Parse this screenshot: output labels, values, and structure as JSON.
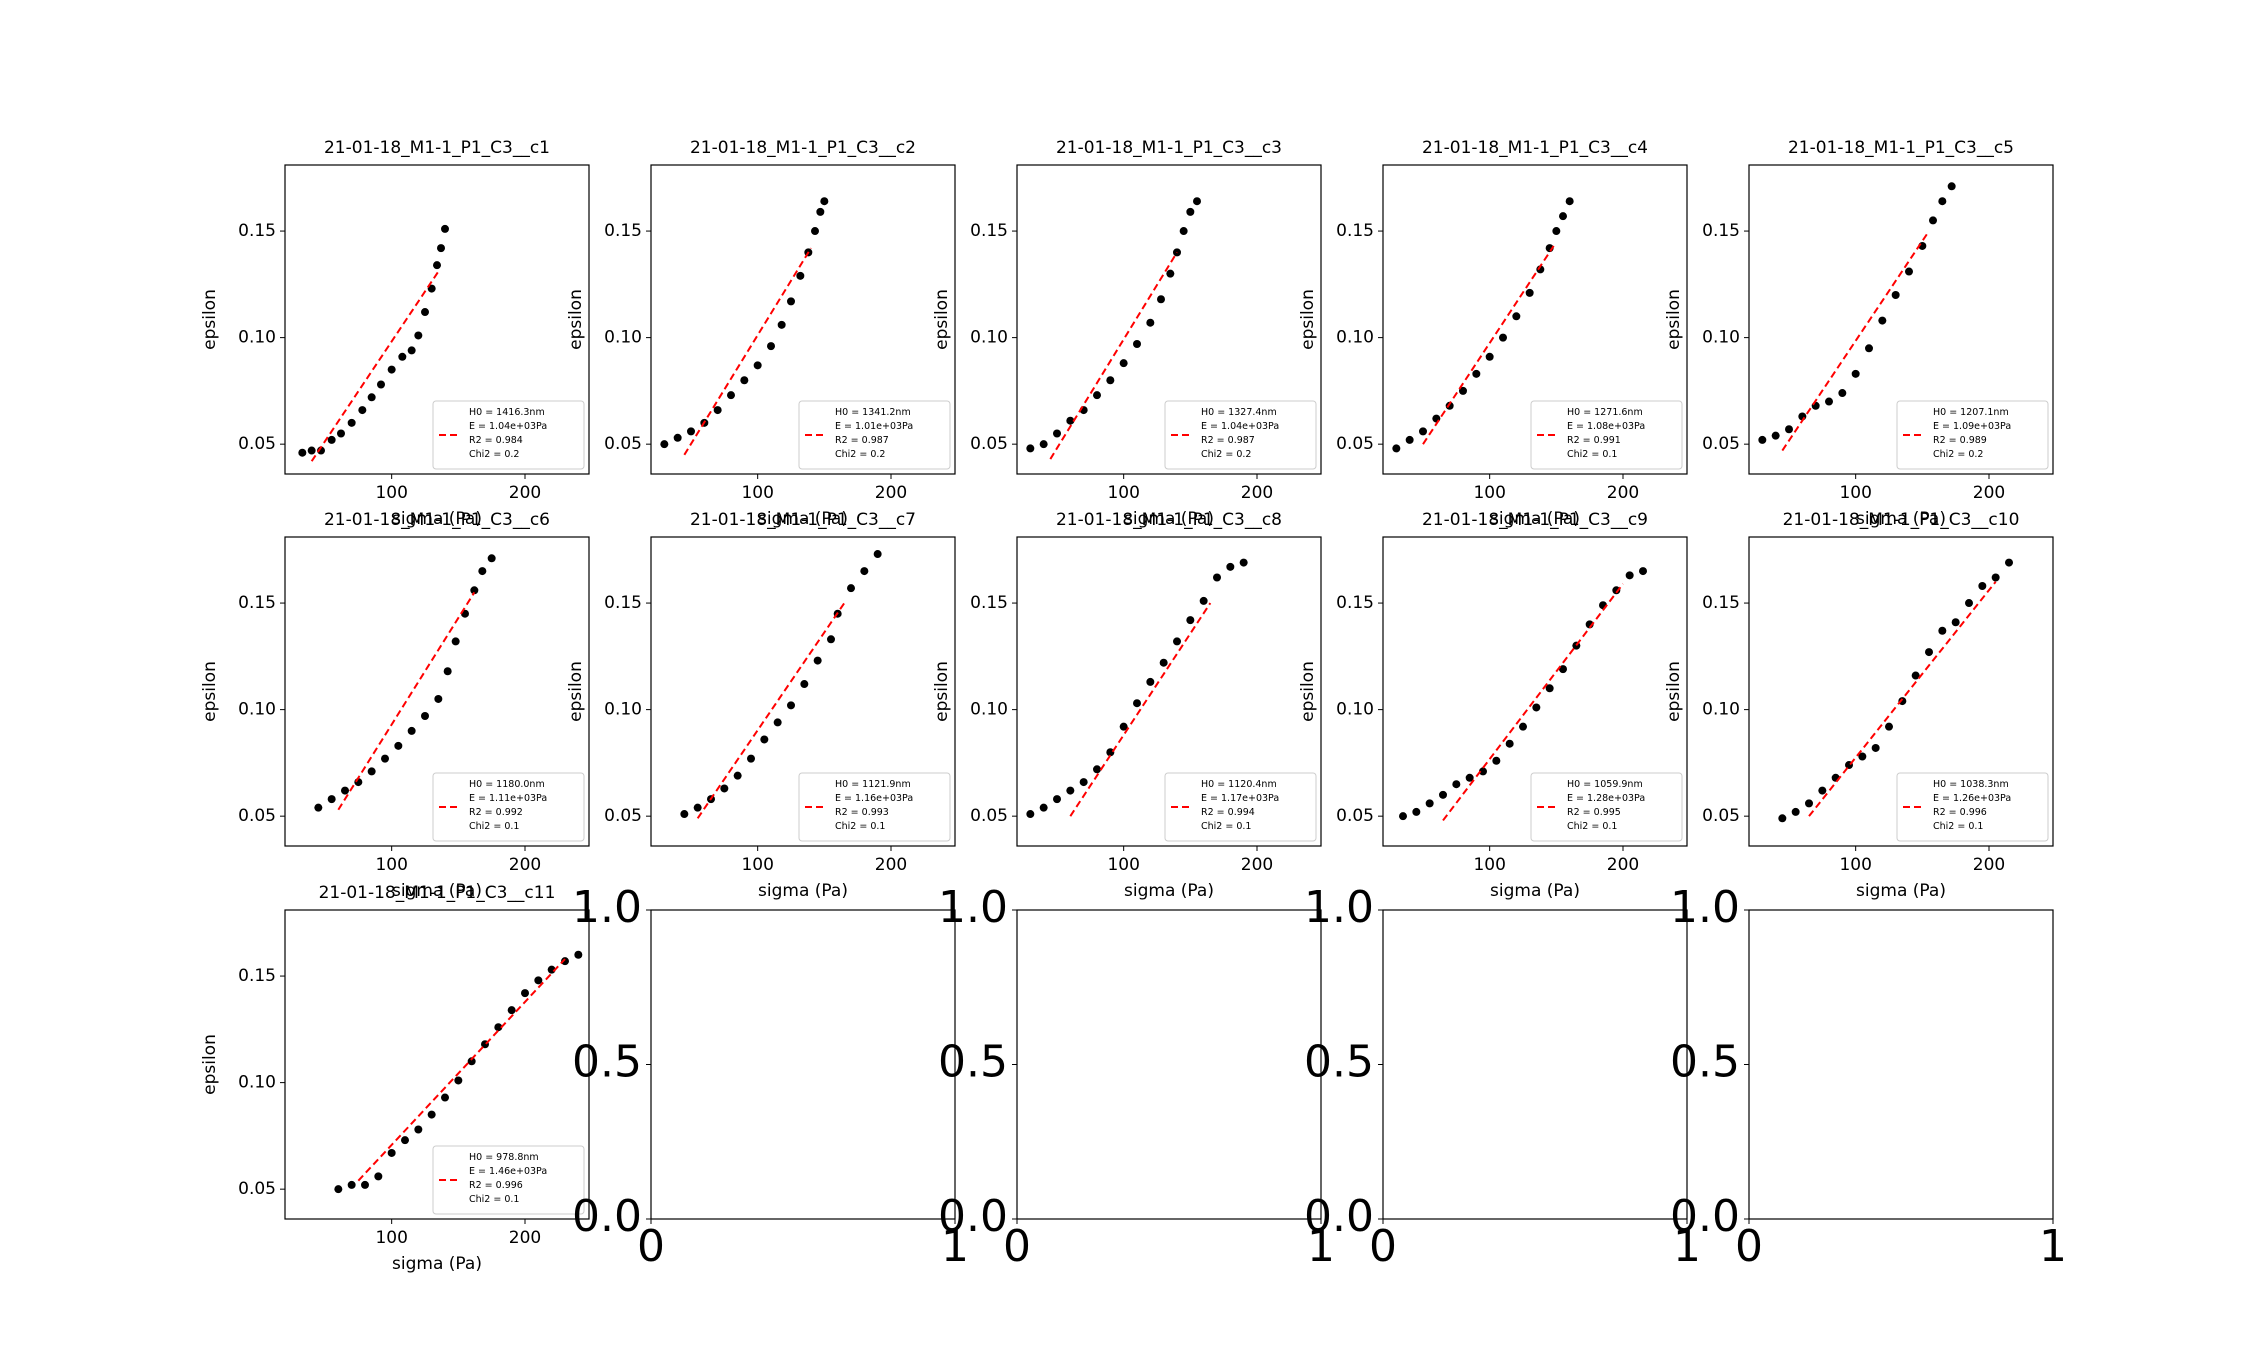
{
  "chart_data": [
    {
      "type": "scatter",
      "title": "21-01-18_M1-1_P1_C3__c1",
      "xlabel": "sigma (Pa)",
      "ylabel": "epsilon",
      "xlim": [
        20,
        248
      ],
      "ylim": [
        0.036,
        0.181
      ],
      "xticks": [
        100,
        200
      ],
      "yticks": [
        0.05,
        {
          "value": 0.1,
          "label": "0.10"
        },
        0.15
      ],
      "legend": "lower right",
      "series": [
        {
          "color": "#000000",
          "x": [
            33,
            40,
            47,
            55,
            62,
            70,
            78,
            85,
            92,
            100,
            108,
            115,
            120,
            125,
            130,
            134,
            137,
            140
          ],
          "values": [
            0.046,
            0.047,
            0.047,
            0.052,
            0.055,
            0.06,
            0.066,
            0.072,
            0.078,
            0.085,
            0.091,
            0.094,
            0.101,
            0.112,
            0.123,
            0.134,
            0.142,
            0.151
          ]
        },
        {
          "name": [
            "H0 = 1416.3nm",
            "E = 1.04e+03Pa",
            "R2 = 0.984",
            "Chi2 = 0.2"
          ],
          "color": "#ff0000",
          "x": [
            40,
            135
          ],
          "values": [
            0.042,
            0.131
          ]
        }
      ]
    },
    {
      "type": "scatter",
      "title": "21-01-18_M1-1_P1_C3__c2",
      "xlabel": "sigma (Pa)",
      "ylabel": "epsilon",
      "xlim": [
        20,
        248
      ],
      "ylim": [
        0.036,
        0.181
      ],
      "xticks": [
        100,
        200
      ],
      "yticks": [
        0.05,
        {
          "value": 0.1,
          "label": "0.10"
        },
        0.15
      ],
      "legend": "lower right",
      "series": [
        {
          "color": "#000000",
          "x": [
            30,
            40,
            50,
            60,
            70,
            80,
            90,
            100,
            110,
            118,
            125,
            132,
            138,
            143,
            147,
            150
          ],
          "values": [
            0.05,
            0.053,
            0.056,
            0.06,
            0.066,
            0.073,
            0.08,
            0.087,
            0.096,
            0.106,
            0.117,
            0.129,
            0.14,
            0.15,
            0.159,
            0.164
          ]
        },
        {
          "name": [
            "H0 = 1341.2nm",
            "E = 1.01e+03Pa",
            "R2 = 0.987",
            "Chi2 = 0.2"
          ],
          "color": "#ff0000",
          "x": [
            45,
            140
          ],
          "values": [
            0.045,
            0.142
          ]
        }
      ]
    },
    {
      "type": "scatter",
      "title": "21-01-18_M1-1_P1_C3__c3",
      "xlabel": "sigma (Pa)",
      "ylabel": "epsilon",
      "xlim": [
        20,
        248
      ],
      "ylim": [
        0.036,
        0.181
      ],
      "xticks": [
        100,
        200
      ],
      "yticks": [
        0.05,
        {
          "value": 0.1,
          "label": "0.10"
        },
        0.15
      ],
      "legend": "lower right",
      "series": [
        {
          "color": "#000000",
          "x": [
            30,
            40,
            50,
            60,
            70,
            80,
            90,
            100,
            110,
            120,
            128,
            135,
            140,
            145,
            150,
            155
          ],
          "values": [
            0.048,
            0.05,
            0.055,
            0.061,
            0.066,
            0.073,
            0.08,
            0.088,
            0.097,
            0.107,
            0.118,
            0.13,
            0.14,
            0.15,
            0.159,
            0.164
          ]
        },
        {
          "name": [
            "H0 = 1327.4nm",
            "E = 1.04e+03Pa",
            "R2 = 0.987",
            "Chi2 = 0.2"
          ],
          "color": "#ff0000",
          "x": [
            45,
            140
          ],
          "values": [
            0.043,
            0.14
          ]
        }
      ]
    },
    {
      "type": "scatter",
      "title": "21-01-18_M1-1_P1_C3__c4",
      "xlabel": "sigma (Pa)",
      "ylabel": "epsilon",
      "xlim": [
        20,
        248
      ],
      "ylim": [
        0.036,
        0.181
      ],
      "xticks": [
        100,
        200
      ],
      "yticks": [
        0.05,
        {
          "value": 0.1,
          "label": "0.10"
        },
        0.15
      ],
      "legend": "lower right",
      "series": [
        {
          "color": "#000000",
          "x": [
            30,
            40,
            50,
            60,
            70,
            80,
            90,
            100,
            110,
            120,
            130,
            138,
            145,
            150,
            155,
            160
          ],
          "values": [
            0.048,
            0.052,
            0.056,
            0.062,
            0.068,
            0.075,
            0.083,
            0.091,
            0.1,
            0.11,
            0.121,
            0.132,
            0.142,
            0.15,
            0.157,
            0.164
          ]
        },
        {
          "name": [
            "H0 = 1271.6nm",
            "E = 1.08e+03Pa",
            "R2 = 0.991",
            "Chi2 = 0.1"
          ],
          "color": "#ff0000",
          "x": [
            50,
            148
          ],
          "values": [
            0.05,
            0.143
          ]
        }
      ]
    },
    {
      "type": "scatter",
      "title": "21-01-18_M1-1_P1_C3__c5",
      "xlabel": "sigma (Pa)",
      "ylabel": "epsilon",
      "xlim": [
        20,
        248
      ],
      "ylim": [
        0.036,
        0.181
      ],
      "xticks": [
        100,
        200
      ],
      "yticks": [
        0.05,
        {
          "value": 0.1,
          "label": "0.10"
        },
        0.15
      ],
      "legend": "lower right",
      "series": [
        {
          "color": "#000000",
          "x": [
            30,
            40,
            50,
            60,
            70,
            80,
            90,
            100,
            110,
            120,
            130,
            140,
            150,
            158,
            165,
            172
          ],
          "values": [
            0.052,
            0.054,
            0.057,
            0.063,
            0.068,
            0.07,
            0.074,
            0.083,
            0.095,
            0.108,
            0.12,
            0.131,
            0.143,
            0.155,
            0.164,
            0.171
          ]
        },
        {
          "name": [
            "H0 = 1207.1nm",
            "E = 1.09e+03Pa",
            "R2 = 0.989",
            "Chi2 = 0.2"
          ],
          "color": "#ff0000",
          "x": [
            45,
            155
          ],
          "values": [
            0.047,
            0.15
          ]
        }
      ]
    },
    {
      "type": "scatter",
      "title": "21-01-18_M1-1_P1_C3__c6",
      "xlabel": "sigma (Pa)",
      "ylabel": "epsilon",
      "xlim": [
        20,
        248
      ],
      "ylim": [
        0.036,
        0.181
      ],
      "xticks": [
        100,
        200
      ],
      "yticks": [
        0.05,
        {
          "value": 0.1,
          "label": "0.10"
        },
        0.15
      ],
      "legend": "lower right",
      "series": [
        {
          "color": "#000000",
          "x": [
            45,
            55,
            65,
            75,
            85,
            95,
            105,
            115,
            125,
            135,
            142,
            148,
            155,
            162,
            168,
            175
          ],
          "values": [
            0.054,
            0.058,
            0.062,
            0.066,
            0.071,
            0.077,
            0.083,
            0.09,
            0.097,
            0.105,
            0.118,
            0.132,
            0.145,
            0.156,
            0.165,
            0.171
          ]
        },
        {
          "name": [
            "H0 = 1180.0nm",
            "E = 1.11e+03Pa",
            "R2 = 0.992",
            "Chi2 = 0.1"
          ],
          "color": "#ff0000",
          "x": [
            60,
            162
          ],
          "values": [
            0.053,
            0.155
          ]
        }
      ]
    },
    {
      "type": "scatter",
      "title": "21-01-18_M1-1_P1_C3__c7",
      "xlabel": "sigma (Pa)",
      "ylabel": "epsilon",
      "xlim": [
        20,
        248
      ],
      "ylim": [
        0.036,
        0.181
      ],
      "xticks": [
        100,
        200
      ],
      "yticks": [
        0.05,
        {
          "value": 0.1,
          "label": "0.10"
        },
        0.15
      ],
      "legend": "lower right",
      "series": [
        {
          "color": "#000000",
          "x": [
            45,
            55,
            65,
            75,
            85,
            95,
            105,
            115,
            125,
            135,
            145,
            155,
            160,
            170,
            180,
            190
          ],
          "values": [
            0.051,
            0.054,
            0.058,
            0.063,
            0.069,
            0.077,
            0.086,
            0.094,
            0.102,
            0.112,
            0.123,
            0.133,
            0.145,
            0.157,
            0.165,
            0.173
          ]
        },
        {
          "name": [
            "H0 = 1121.9nm",
            "E = 1.16e+03Pa",
            "R2 = 0.993",
            "Chi2 = 0.1"
          ],
          "color": "#ff0000",
          "x": [
            55,
            165
          ],
          "values": [
            0.049,
            0.15
          ]
        }
      ]
    },
    {
      "type": "scatter",
      "title": "21-01-18_M1-1_P1_C3__c8",
      "xlabel": "sigma (Pa)",
      "ylabel": "epsilon",
      "xlim": [
        20,
        248
      ],
      "ylim": [
        0.036,
        0.181
      ],
      "xticks": [
        100,
        200
      ],
      "yticks": [
        0.05,
        {
          "value": 0.1,
          "label": "0.10"
        },
        0.15
      ],
      "legend": "lower right",
      "series": [
        {
          "color": "#000000",
          "x": [
            30,
            40,
            50,
            60,
            70,
            80,
            90,
            100,
            110,
            120,
            130,
            140,
            150,
            160,
            170,
            180,
            190
          ],
          "values": [
            0.051,
            0.054,
            0.058,
            0.062,
            0.066,
            0.072,
            0.08,
            0.092,
            0.103,
            0.113,
            0.122,
            0.132,
            0.142,
            0.151,
            0.162,
            0.167,
            0.169
          ]
        },
        {
          "name": [
            "H0 = 1120.4nm",
            "E = 1.17e+03Pa",
            "R2 = 0.994",
            "Chi2 = 0.1"
          ],
          "color": "#ff0000",
          "x": [
            60,
            165
          ],
          "values": [
            0.05,
            0.15
          ]
        }
      ]
    },
    {
      "type": "scatter",
      "title": "21-01-18_M1-1_P1_C3__c9",
      "xlabel": "sigma (Pa)",
      "ylabel": "epsilon",
      "xlim": [
        20,
        248
      ],
      "ylim": [
        0.036,
        0.181
      ],
      "xticks": [
        100,
        200
      ],
      "yticks": [
        0.05,
        {
          "value": 0.1,
          "label": "0.10"
        },
        0.15
      ],
      "legend": "lower right",
      "series": [
        {
          "color": "#000000",
          "x": [
            35,
            45,
            55,
            65,
            75,
            85,
            95,
            105,
            115,
            125,
            135,
            145,
            155,
            165,
            175,
            185,
            195,
            205,
            215
          ],
          "values": [
            0.05,
            0.052,
            0.056,
            0.06,
            0.065,
            0.068,
            0.071,
            0.076,
            0.084,
            0.092,
            0.101,
            0.11,
            0.119,
            0.13,
            0.14,
            0.149,
            0.156,
            0.163,
            0.165
          ]
        },
        {
          "name": [
            "H0 = 1059.9nm",
            "E = 1.28e+03Pa",
            "R2 = 0.995",
            "Chi2 = 0.1"
          ],
          "color": "#ff0000",
          "x": [
            65,
            200
          ],
          "values": [
            0.048,
            0.159
          ]
        }
      ]
    },
    {
      "type": "scatter",
      "title": "21-01-18_M1-1_P1_C3__c10",
      "xlabel": "sigma (Pa)",
      "ylabel": "epsilon",
      "xlim": [
        20,
        248
      ],
      "ylim": [
        0.036,
        0.181
      ],
      "xticks": [
        100,
        200
      ],
      "yticks": [
        0.05,
        {
          "value": 0.1,
          "label": "0.10"
        },
        0.15
      ],
      "legend": "lower right",
      "series": [
        {
          "color": "#000000",
          "x": [
            45,
            55,
            65,
            75,
            85,
            95,
            105,
            115,
            125,
            135,
            145,
            155,
            165,
            175,
            185,
            195,
            205,
            215
          ],
          "values": [
            0.049,
            0.052,
            0.056,
            0.062,
            0.068,
            0.074,
            0.078,
            0.082,
            0.092,
            0.104,
            0.116,
            0.127,
            0.137,
            0.141,
            0.15,
            0.158,
            0.162,
            0.169
          ]
        },
        {
          "name": [
            "H0 = 1038.3nm",
            "E = 1.26e+03Pa",
            "R2 = 0.996",
            "Chi2 = 0.1"
          ],
          "color": "#ff0000",
          "x": [
            65,
            205
          ],
          "values": [
            0.05,
            0.16
          ]
        }
      ]
    },
    {
      "type": "scatter",
      "title": "21-01-18_M1-1_P1_C3__c11",
      "xlabel": "sigma (Pa)",
      "ylabel": "epsilon",
      "xlim": [
        20,
        248
      ],
      "ylim": [
        0.036,
        0.181
      ],
      "xticks": [
        100,
        200
      ],
      "yticks": [
        0.05,
        {
          "value": 0.1,
          "label": "0.10"
        },
        0.15
      ],
      "legend": "lower right",
      "series": [
        {
          "color": "#000000",
          "x": [
            60,
            70,
            80,
            90,
            100,
            110,
            120,
            130,
            140,
            150,
            160,
            170,
            180,
            190,
            200,
            210,
            220,
            230,
            240
          ],
          "values": [
            0.05,
            0.052,
            0.052,
            0.056,
            0.067,
            0.073,
            0.078,
            0.085,
            0.093,
            0.101,
            0.11,
            0.118,
            0.126,
            0.134,
            0.142,
            0.148,
            0.153,
            0.157,
            0.16
          ]
        },
        {
          "name": [
            "H0 = 978.8nm",
            "E = 1.46e+03Pa",
            "R2 = 0.996",
            "Chi2 = 0.1"
          ],
          "color": "#ff0000",
          "x": [
            75,
            230
          ],
          "values": [
            0.054,
            0.158
          ]
        }
      ]
    },
    {
      "type": "empty",
      "xlim": [
        0,
        1
      ],
      "ylim": [
        0,
        1
      ],
      "xticks": [
        0,
        1
      ],
      "yticks": [
        {
          "value": 0,
          "label": "0.0"
        },
        0.5,
        {
          "value": 1,
          "label": "1.0"
        }
      ]
    },
    {
      "type": "empty",
      "xlim": [
        0,
        1
      ],
      "ylim": [
        0,
        1
      ],
      "xticks": [
        0,
        1
      ],
      "yticks": [
        {
          "value": 0,
          "label": "0.0"
        },
        0.5,
        {
          "value": 1,
          "label": "1.0"
        }
      ]
    },
    {
      "type": "empty",
      "xlim": [
        0,
        1
      ],
      "ylim": [
        0,
        1
      ],
      "xticks": [
        0,
        1
      ],
      "yticks": [
        {
          "value": 0,
          "label": "0.0"
        },
        0.5,
        {
          "value": 1,
          "label": "1.0"
        }
      ]
    },
    {
      "type": "empty",
      "xlim": [
        0,
        1
      ],
      "ylim": [
        0,
        1
      ],
      "xticks": [
        0,
        1
      ],
      "yticks": [
        {
          "value": 0,
          "label": "0.0"
        },
        0.5,
        {
          "value": 1,
          "label": "1.0"
        }
      ]
    }
  ]
}
